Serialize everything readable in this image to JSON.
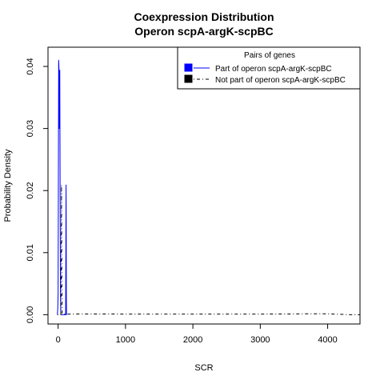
{
  "chart_data": {
    "type": "line",
    "title": "Coexpression Distribution",
    "subtitle": "Operon scpA-argK-scpBC",
    "xlabel": "SCR",
    "ylabel": "Probability Density",
    "xlim": [
      -150,
      4480
    ],
    "ylim": [
      -0.0015,
      0.0431
    ],
    "x_ticks": [
      0,
      1000,
      2000,
      3000,
      4000
    ],
    "x_tick_labels": [
      "0",
      "1000",
      "2000",
      "3000",
      "4000"
    ],
    "y_ticks": [
      0.0,
      0.01,
      0.02,
      0.03,
      0.04
    ],
    "y_tick_labels": [
      "0.00",
      "0.01",
      "0.02",
      "0.03",
      "0.04"
    ],
    "grid": false,
    "legend": {
      "title": "Pairs of genes",
      "placement": "top-right"
    },
    "series": [
      {
        "name": "Part of operon scpA-argK-scpBC",
        "color": "#0000ff",
        "line_style": "solid",
        "x": [
          -10,
          -5,
          0,
          4,
          8,
          12,
          16,
          20,
          25,
          30,
          35,
          40,
          45,
          50,
          55,
          60,
          65,
          70,
          80,
          90,
          95,
          100,
          102,
          104,
          106,
          108,
          110,
          112,
          115,
          118,
          120,
          122,
          124,
          130
        ],
        "y": [
          0.0,
          0.001,
          0.0035,
          0.02,
          0.041,
          0.04,
          0.03,
          0.039,
          0.0394,
          0.02,
          0.003,
          0.0,
          0.0,
          0.0,
          0.0,
          0.0,
          0.0,
          0.0,
          0.0,
          0.0,
          0.0,
          0.0,
          0.0,
          0.0,
          0.0,
          0.0,
          0.0,
          0.0,
          0.01,
          0.0209,
          0.015,
          0.004,
          0.0,
          0.0
        ]
      },
      {
        "name": "Not part of operon scpA-argK-scpBC",
        "color": "#000000",
        "line_style": "dotdash",
        "x": [
          -10,
          0,
          10,
          20,
          30,
          40,
          45,
          50,
          55,
          60,
          65,
          70,
          200,
          500,
          1000,
          1500,
          2000,
          2500,
          3000,
          3500,
          3800,
          4000,
          4100,
          4200,
          4250,
          4300,
          4350,
          4400,
          4480
        ],
        "y": [
          0.0,
          0.0,
          0.0,
          0.0,
          0.0,
          0.0,
          0.005,
          0.0209,
          0.005,
          0.0002,
          0.0001,
          0.0001,
          0.0001,
          0.00012,
          0.0001,
          0.0001,
          0.0001,
          0.0001,
          0.0001,
          0.00012,
          0.00015,
          0.00014,
          0.0001,
          6e-05,
          3e-05,
          1e-05,
          0.0,
          0.0,
          0.0
        ]
      }
    ]
  }
}
